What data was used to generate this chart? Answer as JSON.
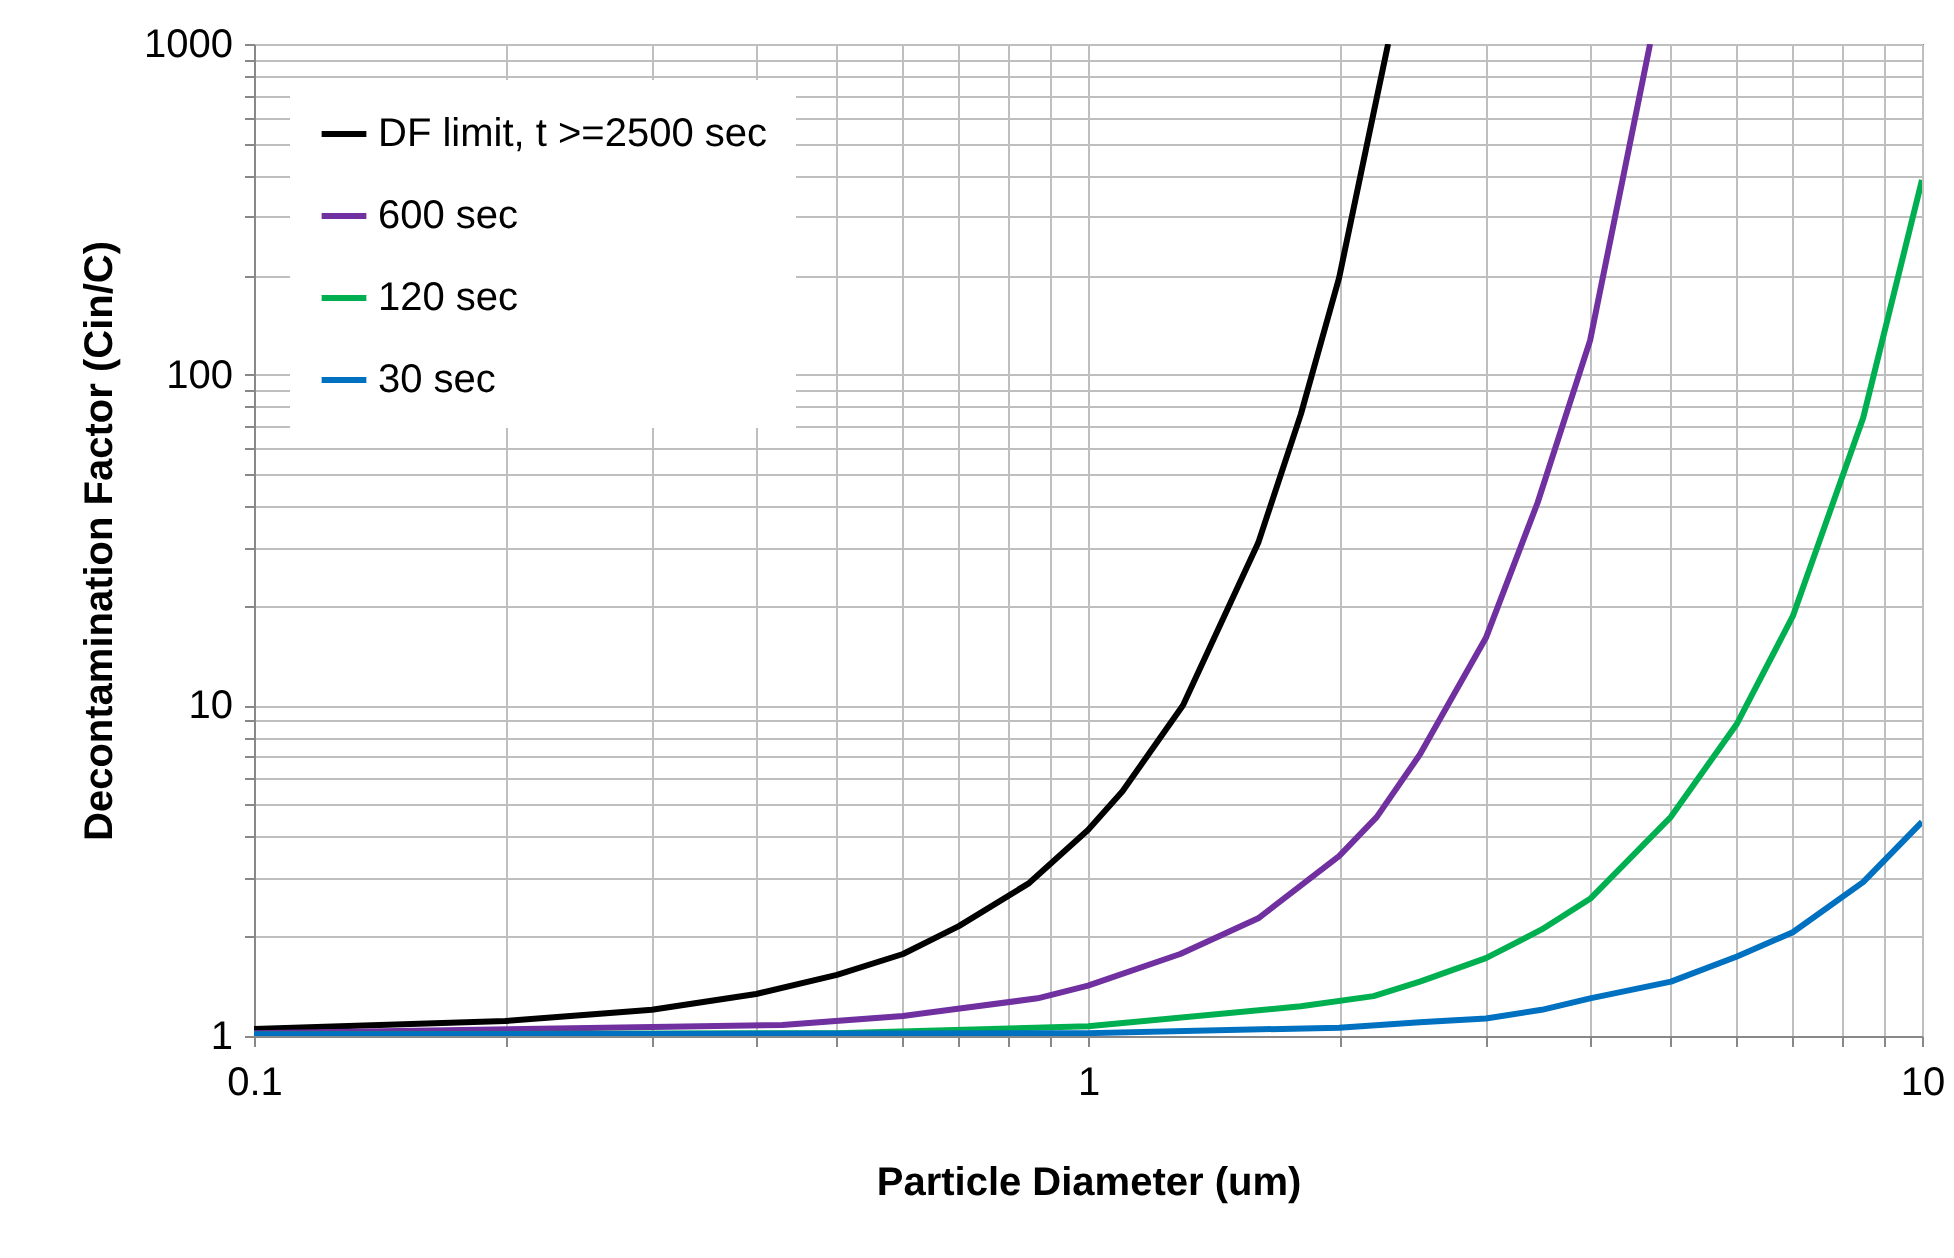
{
  "chart_data": {
    "type": "line",
    "xlabel": "Particle Diameter (um)",
    "ylabel": "Decontamination Factor (Cin/C)",
    "log": "xy",
    "grid": true,
    "legend": "top left",
    "marker": "none",
    "line_style": "solid",
    "xlim": [
      0.1,
      10
    ],
    "ylim": [
      1,
      1000
    ],
    "xticks": [
      0.1,
      {
        "value": 0.2,
        "label": null
      },
      {
        "value": 0.3,
        "label": null
      },
      {
        "value": 0.4,
        "label": null
      },
      {
        "value": 0.5,
        "label": null
      },
      {
        "value": 0.6,
        "label": null
      },
      {
        "value": 0.7,
        "label": null
      },
      {
        "value": 0.8,
        "label": null
      },
      {
        "value": 0.9,
        "label": null
      },
      1,
      {
        "value": 2,
        "label": null
      },
      {
        "value": 3,
        "label": null
      },
      {
        "value": 4,
        "label": null
      },
      {
        "value": 5,
        "label": null
      },
      {
        "value": 6,
        "label": null
      },
      {
        "value": 7,
        "label": null
      },
      {
        "value": 8,
        "label": null
      },
      {
        "value": 9,
        "label": null
      },
      10
    ],
    "yticks": [
      1,
      {
        "value": 2,
        "label": null
      },
      {
        "value": 3,
        "label": null
      },
      {
        "value": 4,
        "label": null
      },
      {
        "value": 5,
        "label": null
      },
      {
        "value": 6,
        "label": null
      },
      {
        "value": 7,
        "label": null
      },
      {
        "value": 8,
        "label": null
      },
      {
        "value": 9,
        "label": null
      },
      10,
      {
        "value": 20,
        "label": null
      },
      {
        "value": 30,
        "label": null
      },
      {
        "value": 40,
        "label": null
      },
      {
        "value": 50,
        "label": null
      },
      {
        "value": 60,
        "label": null
      },
      {
        "value": 70,
        "label": null
      },
      {
        "value": 80,
        "label": null
      },
      {
        "value": 90,
        "label": null
      },
      100,
      {
        "value": 200,
        "label": null
      },
      {
        "value": 300,
        "label": null
      },
      {
        "value": 400,
        "label": null
      },
      {
        "value": 500,
        "label": null
      },
      {
        "value": 600,
        "label": null
      },
      {
        "value": 700,
        "label": null
      },
      {
        "value": 800,
        "label": null
      },
      {
        "value": 900,
        "label": null
      },
      1000
    ],
    "series": [
      {
        "name": "DF limit, t >=2500 sec",
        "color": "#000000",
        "x": [
          0.1,
          0.2,
          0.3,
          0.4,
          0.5,
          0.6,
          0.7,
          0.85,
          1,
          1.1,
          1.3,
          1.6,
          1.8,
          2,
          2.17,
          2.29
        ],
        "values": [
          1.05,
          1.11,
          1.2,
          1.34,
          1.53,
          1.77,
          2.15,
          2.9,
          4.2,
          5.5,
          10,
          31,
          76,
          196,
          525,
          1000
        ]
      },
      {
        "name": "600 sec",
        "color": "#7030a0",
        "x": [
          0.1,
          0.43,
          0.6,
          0.87,
          1,
          1.29,
          1.6,
          2,
          2.22,
          2.5,
          3,
          3.46,
          4,
          4.72
        ],
        "values": [
          1.02,
          1.08,
          1.15,
          1.3,
          1.42,
          1.77,
          2.27,
          3.5,
          4.6,
          7.1,
          16,
          41,
          127,
          1000
        ]
      },
      {
        "name": "120 sec",
        "color": "#00b050",
        "x": [
          0.1,
          0.5,
          1,
          1.8,
          2.2,
          2.5,
          3,
          3.5,
          4,
          5,
          6,
          7,
          8.5,
          10
        ],
        "values": [
          1.01,
          1.02,
          1.07,
          1.23,
          1.32,
          1.46,
          1.72,
          2.1,
          2.6,
          4.6,
          8.8,
          18.6,
          74,
          388
        ]
      },
      {
        "name": "30 sec",
        "color": "#0070c0",
        "x": [
          0.1,
          1,
          2,
          2.5,
          3,
          3.5,
          4,
          5,
          6,
          7,
          8.5,
          10
        ],
        "values": [
          1.01,
          1.02,
          1.06,
          1.1,
          1.13,
          1.2,
          1.3,
          1.46,
          1.74,
          2.06,
          2.92,
          4.44
        ]
      }
    ]
  }
}
